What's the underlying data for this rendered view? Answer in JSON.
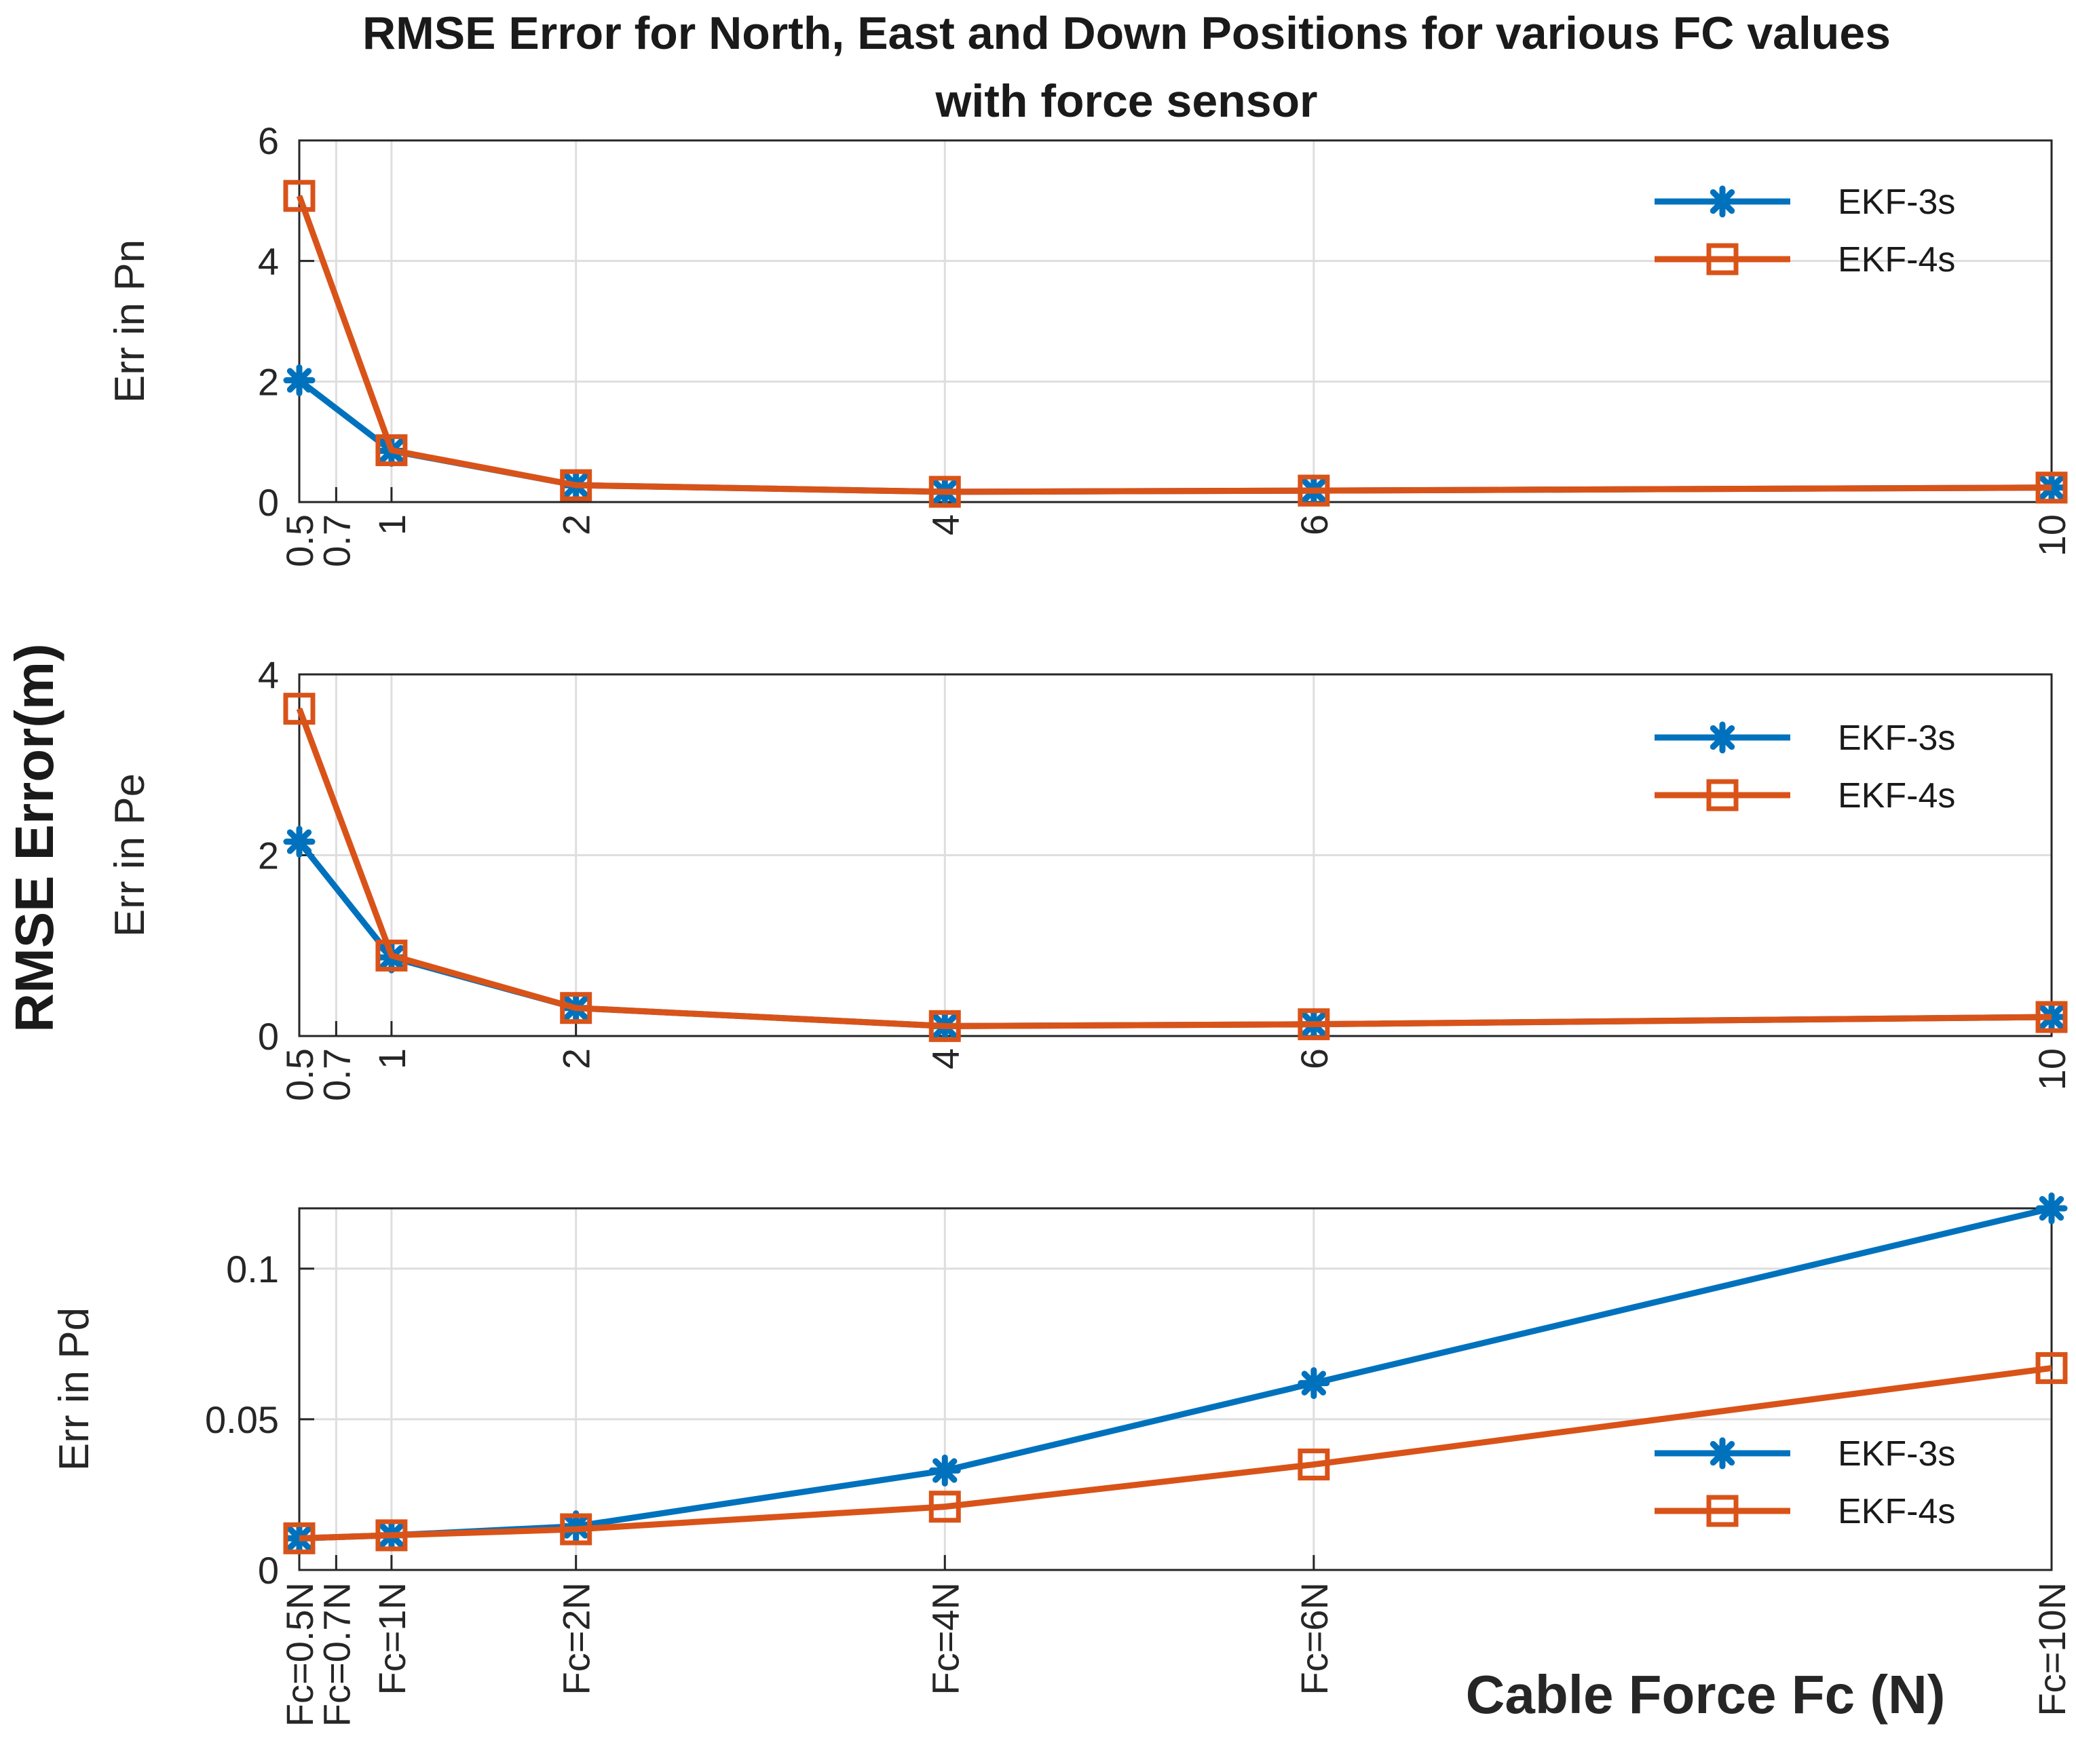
{
  "figure": {
    "title_line1": "RMSE Error for North, East and Down Positions for various FC values",
    "title_line2": "with force sensor",
    "shared_ylabel": "RMSE Error(m)",
    "shared_xlabel": "Cable Force Fc (N)"
  },
  "colors": {
    "ekf3s": "#0072BD",
    "ekf4s": "#D95319",
    "grid": "#dedede",
    "axis": "#262626"
  },
  "chart_data": [
    {
      "type": "line",
      "ylabel": "Err in Pn",
      "x": [
        0.5,
        0.7,
        1,
        2,
        4,
        6,
        10
      ],
      "xticks": [
        "0.5",
        "0.7",
        "1",
        "2",
        "4",
        "6",
        "10"
      ],
      "xlim": [
        0.5,
        10
      ],
      "ylim": [
        0,
        6
      ],
      "yticks": [
        0,
        2,
        4,
        6
      ],
      "ytick_labels": [
        "0",
        "2",
        "4",
        "6"
      ],
      "grid": true,
      "legend": "top-right",
      "series": [
        {
          "name": "EKF-3s",
          "marker": "asterisk",
          "x": [
            0.5,
            1,
            2,
            4,
            6,
            10
          ],
          "values": [
            2.02,
            0.85,
            0.28,
            0.17,
            0.19,
            0.24
          ]
        },
        {
          "name": "EKF-4s",
          "marker": "square",
          "x": [
            0.5,
            1,
            2,
            4,
            6,
            10
          ],
          "values": [
            5.08,
            0.86,
            0.28,
            0.17,
            0.19,
            0.24
          ]
        }
      ]
    },
    {
      "type": "line",
      "ylabel": "Err in Pe",
      "x": [
        0.5,
        0.7,
        1,
        2,
        4,
        6,
        10
      ],
      "xticks": [
        "0.5",
        "0.7",
        "1",
        "2",
        "4",
        "6",
        "10"
      ],
      "xlim": [
        0.5,
        10
      ],
      "ylim": [
        0,
        4
      ],
      "yticks": [
        0,
        2,
        4
      ],
      "ytick_labels": [
        "0",
        "2",
        "4"
      ],
      "grid": true,
      "legend": "top-right",
      "series": [
        {
          "name": "EKF-3s",
          "marker": "asterisk",
          "x": [
            0.5,
            1,
            2,
            4,
            6,
            10
          ],
          "values": [
            2.15,
            0.87,
            0.31,
            0.11,
            0.13,
            0.21
          ]
        },
        {
          "name": "EKF-4s",
          "marker": "square",
          "x": [
            0.5,
            1,
            2,
            4,
            6,
            10
          ],
          "values": [
            3.62,
            0.89,
            0.31,
            0.11,
            0.13,
            0.21
          ]
        }
      ]
    },
    {
      "type": "line",
      "ylabel": "Err in Pd",
      "x": [
        0.5,
        0.7,
        1,
        2,
        4,
        6,
        10
      ],
      "xticks": [
        "Fc=0.5N",
        "Fc=0.7N",
        "Fc=1N",
        "Fc=2N",
        "Fc=4N",
        "Fc=6N",
        "Fc=10N"
      ],
      "xlim": [
        0.5,
        10
      ],
      "ylim": [
        0,
        0.12
      ],
      "yticks": [
        0,
        0.05,
        0.1
      ],
      "ytick_labels": [
        "0",
        "0.05",
        "0.1"
      ],
      "grid": true,
      "legend": "bottom-right",
      "series": [
        {
          "name": "EKF-3s",
          "marker": "asterisk",
          "x": [
            0.5,
            1,
            2,
            4,
            6,
            10
          ],
          "values": [
            0.0105,
            0.0115,
            0.0145,
            0.033,
            0.062,
            0.12
          ]
        },
        {
          "name": "EKF-4s",
          "marker": "square",
          "x": [
            0.5,
            1,
            2,
            4,
            6,
            10
          ],
          "values": [
            0.0105,
            0.0115,
            0.0135,
            0.021,
            0.035,
            0.067
          ]
        }
      ]
    }
  ]
}
